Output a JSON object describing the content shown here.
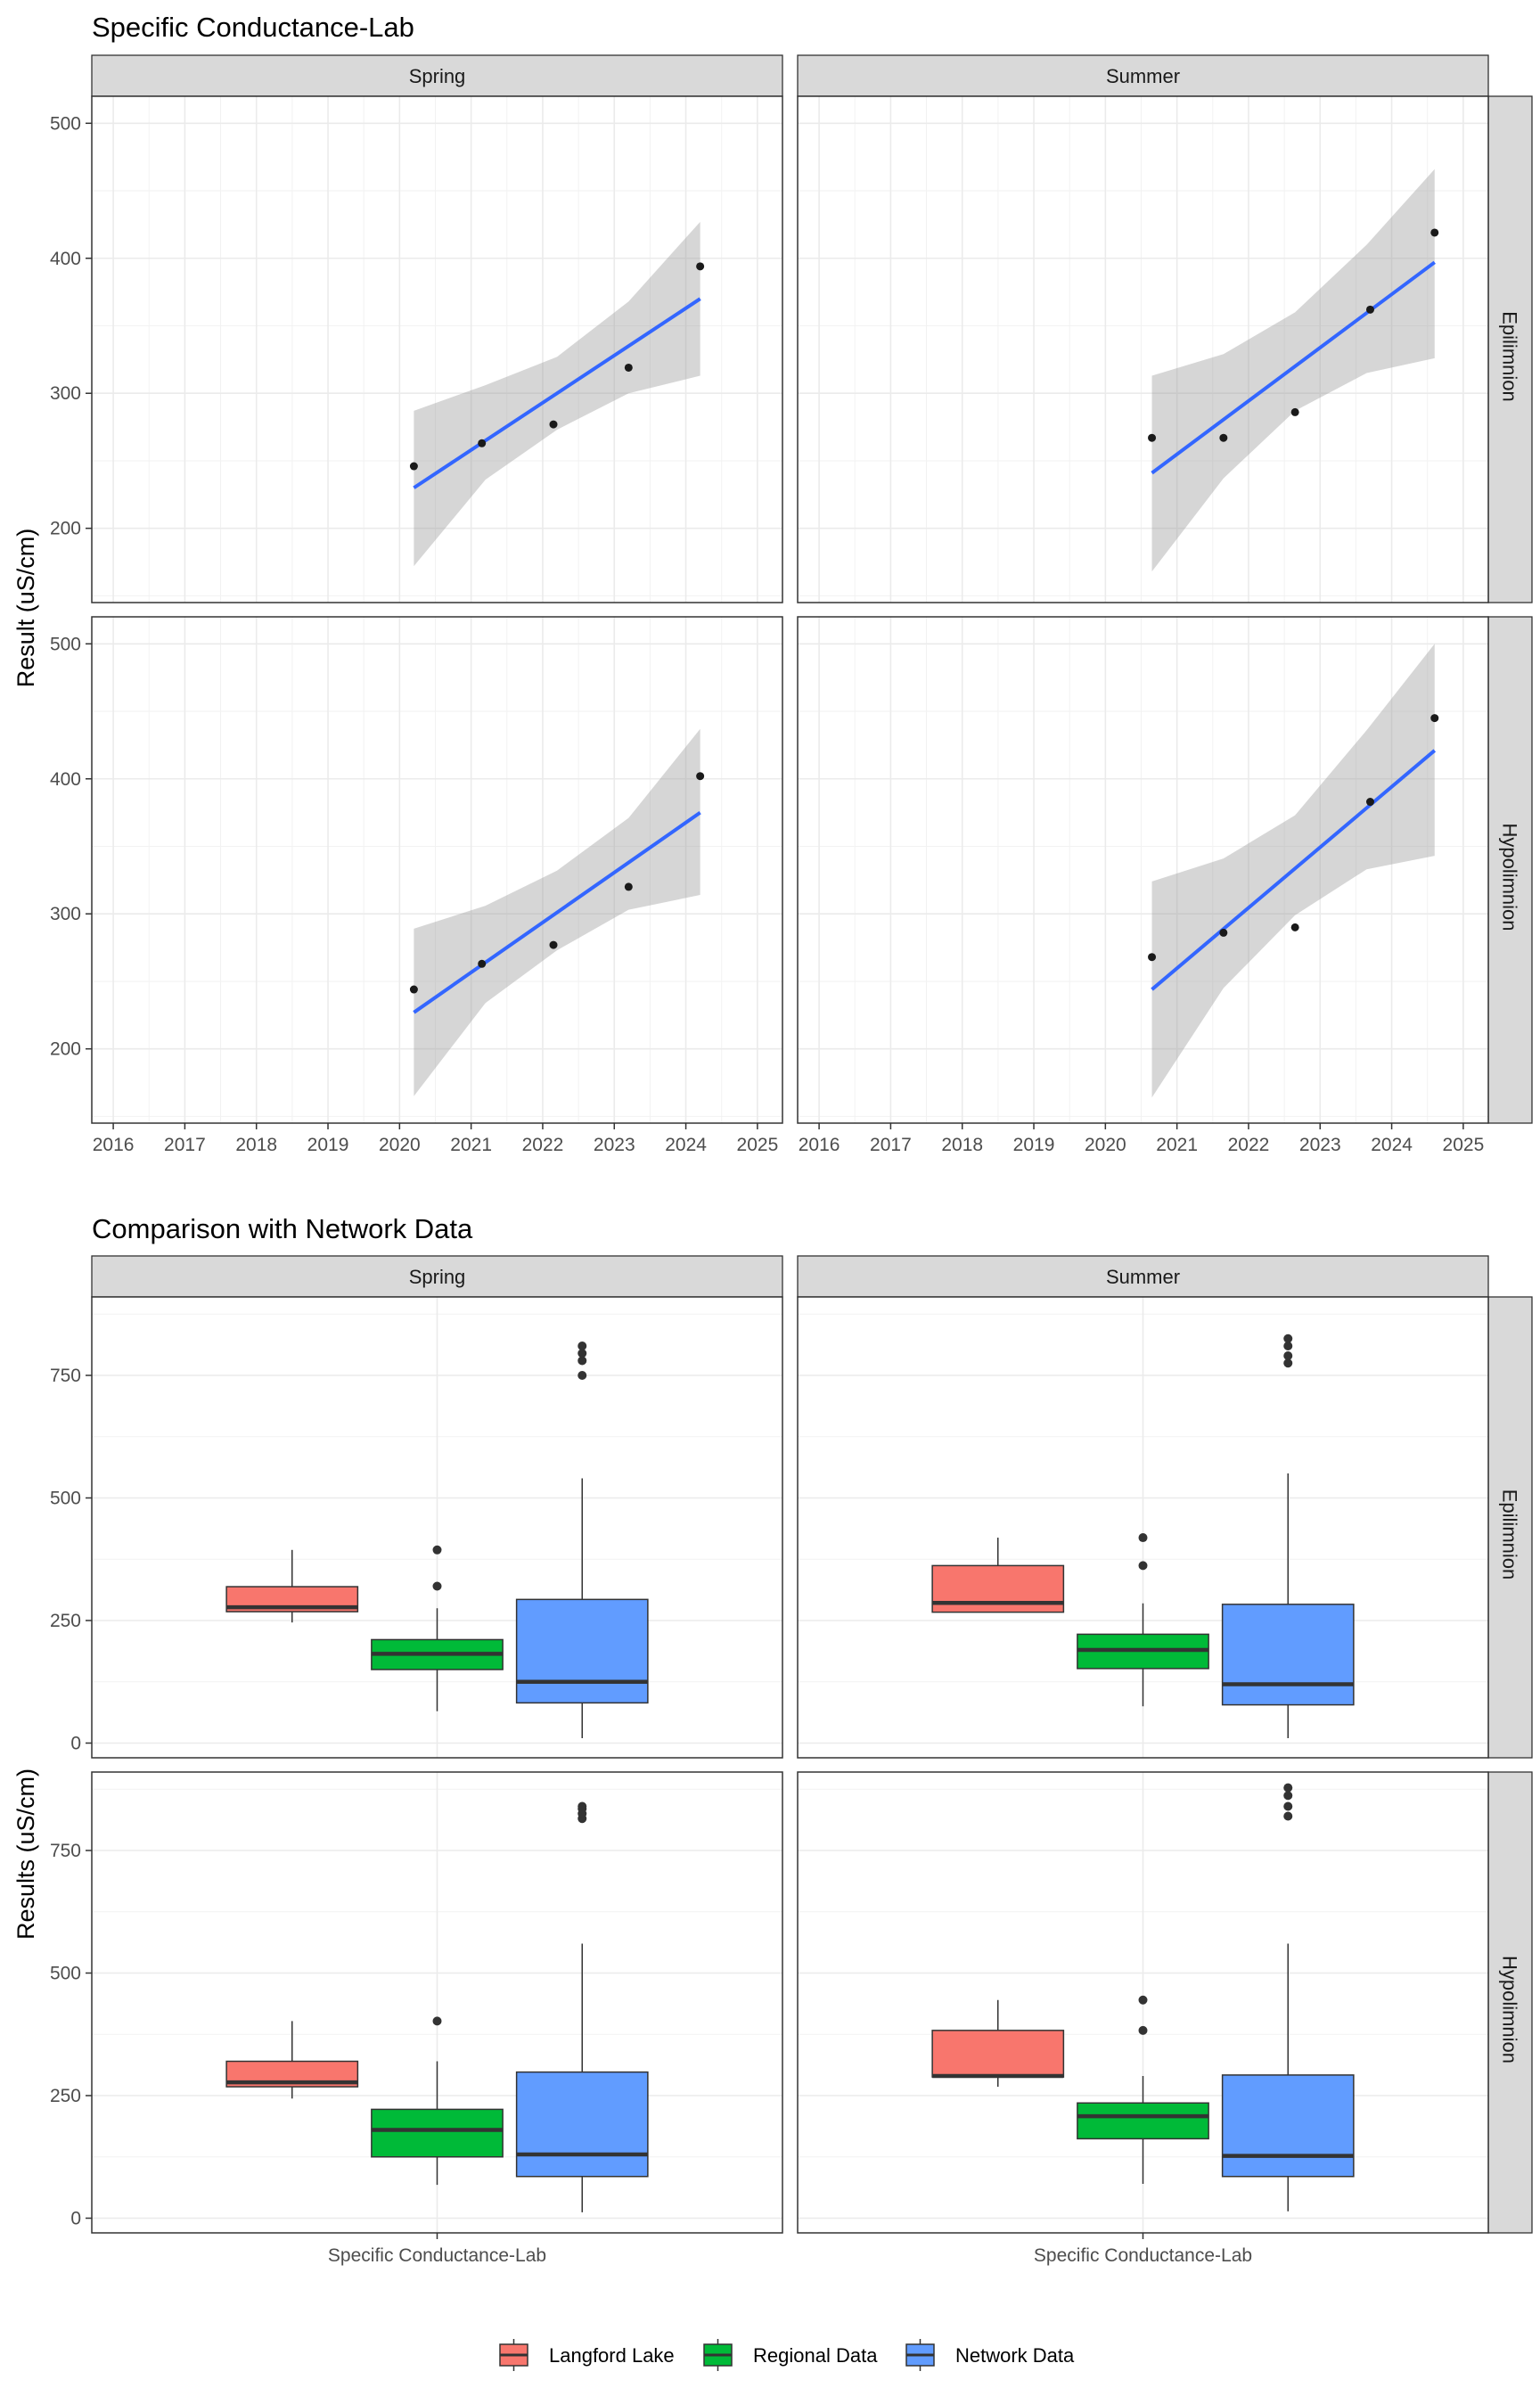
{
  "chart_data": [
    {
      "type": "scatter",
      "title": "Specific Conductance-Lab",
      "ylabel": "Result (uS/cm)",
      "xlabel": "",
      "facet_columns": [
        "Spring",
        "Summer"
      ],
      "facet_rows": [
        "Epilimnion",
        "Hypolimnion"
      ],
      "xlim": [
        2015.7,
        2025.35
      ],
      "ylim": [
        145,
        520
      ],
      "x_ticks": [
        2016,
        2017,
        2018,
        2019,
        2020,
        2021,
        2022,
        2023,
        2024,
        2025
      ],
      "x_tick_labels": [
        "2016",
        "2017",
        "2018",
        "2019",
        "2020",
        "2021",
        "2022",
        "2023",
        "2024",
        "2025"
      ],
      "y_ticks": [
        200,
        300,
        400,
        500
      ],
      "y_tick_labels": [
        "200",
        "300",
        "400",
        "500"
      ],
      "grid": true,
      "trend": "linear fit with confidence band",
      "colors": {
        "points": "#1a1a1a",
        "trend_line": "#3366ff",
        "band": "#999999",
        "strip": "#d9d9d9"
      },
      "panels": [
        {
          "column": "Spring",
          "row": "Epilimnion",
          "points": [
            [
              2020.2,
              246
            ],
            [
              2021.15,
              263
            ],
            [
              2022.15,
              277
            ],
            [
              2023.2,
              319
            ],
            [
              2024.2,
              394
            ]
          ],
          "fit": {
            "x": [
              2020.2,
              2024.2
            ],
            "y": [
              230,
              370
            ]
          },
          "band": {
            "x": [
              2020.2,
              2021.2,
              2022.2,
              2023.2,
              2024.2
            ],
            "lower": [
              172,
              236,
              273,
              300,
              313
            ],
            "upper": [
              287,
              306,
              327,
              368,
              427
            ]
          }
        },
        {
          "column": "Summer",
          "row": "Epilimnion",
          "points": [
            [
              2020.65,
              267
            ],
            [
              2021.65,
              267
            ],
            [
              2022.65,
              286
            ],
            [
              2023.7,
              362
            ],
            [
              2024.6,
              419
            ]
          ],
          "fit": {
            "x": [
              2020.65,
              2024.6
            ],
            "y": [
              241,
              397
            ]
          },
          "band": {
            "x": [
              2020.65,
              2021.65,
              2022.65,
              2023.65,
              2024.6
            ],
            "lower": [
              168,
              237,
              287,
              315,
              326
            ],
            "upper": [
              313,
              329,
              360,
              410,
              466
            ]
          }
        },
        {
          "column": "Spring",
          "row": "Hypolimnion",
          "points": [
            [
              2020.2,
              244
            ],
            [
              2021.15,
              263
            ],
            [
              2022.15,
              277
            ],
            [
              2023.2,
              320
            ],
            [
              2024.2,
              402
            ]
          ],
          "fit": {
            "x": [
              2020.2,
              2024.2
            ],
            "y": [
              227,
              375
            ]
          },
          "band": {
            "x": [
              2020.2,
              2021.2,
              2022.2,
              2023.2,
              2024.2
            ],
            "lower": [
              165,
              234,
              273,
              303,
              314
            ],
            "upper": [
              289,
              306,
              332,
              371,
              437
            ]
          }
        },
        {
          "column": "Summer",
          "row": "Hypolimnion",
          "points": [
            [
              2020.65,
              268
            ],
            [
              2021.65,
              286
            ],
            [
              2022.65,
              290
            ],
            [
              2023.7,
              383
            ],
            [
              2024.6,
              445
            ]
          ],
          "fit": {
            "x": [
              2020.65,
              2024.6
            ],
            "y": [
              244,
              421
            ]
          },
          "band": {
            "x": [
              2020.65,
              2021.65,
              2022.65,
              2023.65,
              2024.6
            ],
            "lower": [
              164,
              245,
              299,
              333,
              343
            ],
            "upper": [
              324,
              341,
              373,
              436,
              500
            ]
          }
        }
      ]
    },
    {
      "type": "box",
      "title": "Comparison with Network Data",
      "ylabel": "Results (uS/cm)",
      "xlabel": "",
      "category": "Specific Conductance-Lab",
      "facet_columns": [
        "Spring",
        "Summer"
      ],
      "facet_rows": [
        "Epilimnion",
        "Hypolimnion"
      ],
      "ylim": [
        -30,
        910
      ],
      "y_ticks": [
        0,
        250,
        500,
        750
      ],
      "y_tick_labels": [
        "0",
        "250",
        "500",
        "750"
      ],
      "grid": true,
      "legend": {
        "position": "bottom",
        "items": [
          "Langford Lake",
          "Regional Data",
          "Network Data"
        ]
      },
      "colors": {
        "Langford Lake": "#f8766d",
        "Regional Data": "#00ba38",
        "Network Data": "#619cff",
        "strip": "#d9d9d9"
      },
      "panels": [
        {
          "column": "Spring",
          "row": "Epilimnion",
          "boxes": [
            {
              "series": "Langford Lake",
              "whisker_low": 246,
              "q1": 268,
              "median": 277,
              "q3": 319,
              "whisker_high": 394,
              "outliers": []
            },
            {
              "series": "Regional Data",
              "whisker_low": 65,
              "q1": 150,
              "median": 182,
              "q3": 211,
              "whisker_high": 275,
              "outliers": [
                320,
                394
              ]
            },
            {
              "series": "Network Data",
              "whisker_low": 10,
              "q1": 82,
              "median": 125,
              "q3": 293,
              "whisker_high": 540,
              "outliers": [
                750,
                780,
                795,
                810
              ]
            }
          ]
        },
        {
          "column": "Summer",
          "row": "Epilimnion",
          "boxes": [
            {
              "series": "Langford Lake",
              "whisker_low": 267,
              "q1": 267,
              "median": 286,
              "q3": 362,
              "whisker_high": 419,
              "outliers": []
            },
            {
              "series": "Regional Data",
              "whisker_low": 75,
              "q1": 152,
              "median": 190,
              "q3": 222,
              "whisker_high": 285,
              "outliers": [
                362,
                419
              ]
            },
            {
              "series": "Network Data",
              "whisker_low": 10,
              "q1": 78,
              "median": 120,
              "q3": 283,
              "whisker_high": 550,
              "outliers": [
                775,
                790,
                810,
                825
              ]
            }
          ]
        },
        {
          "column": "Spring",
          "row": "Hypolimnion",
          "boxes": [
            {
              "series": "Langford Lake",
              "whisker_low": 244,
              "q1": 268,
              "median": 277,
              "q3": 320,
              "whisker_high": 402,
              "outliers": []
            },
            {
              "series": "Regional Data",
              "whisker_low": 68,
              "q1": 125,
              "median": 180,
              "q3": 222,
              "whisker_high": 320,
              "outliers": [
                402
              ]
            },
            {
              "series": "Network Data",
              "whisker_low": 12,
              "q1": 85,
              "median": 130,
              "q3": 298,
              "whisker_high": 560,
              "outliers": [
                815,
                825,
                835,
                840
              ]
            }
          ]
        },
        {
          "column": "Summer",
          "row": "Hypolimnion",
          "boxes": [
            {
              "series": "Langford Lake",
              "whisker_low": 268,
              "q1": 288,
              "median": 290,
              "q3": 383,
              "whisker_high": 445,
              "outliers": []
            },
            {
              "series": "Regional Data",
              "whisker_low": 70,
              "q1": 162,
              "median": 208,
              "q3": 235,
              "whisker_high": 290,
              "outliers": [
                383,
                445
              ]
            },
            {
              "series": "Network Data",
              "whisker_low": 14,
              "q1": 85,
              "median": 127,
              "q3": 292,
              "whisker_high": 560,
              "outliers": [
                820,
                840,
                862,
                878
              ]
            }
          ]
        }
      ]
    }
  ]
}
